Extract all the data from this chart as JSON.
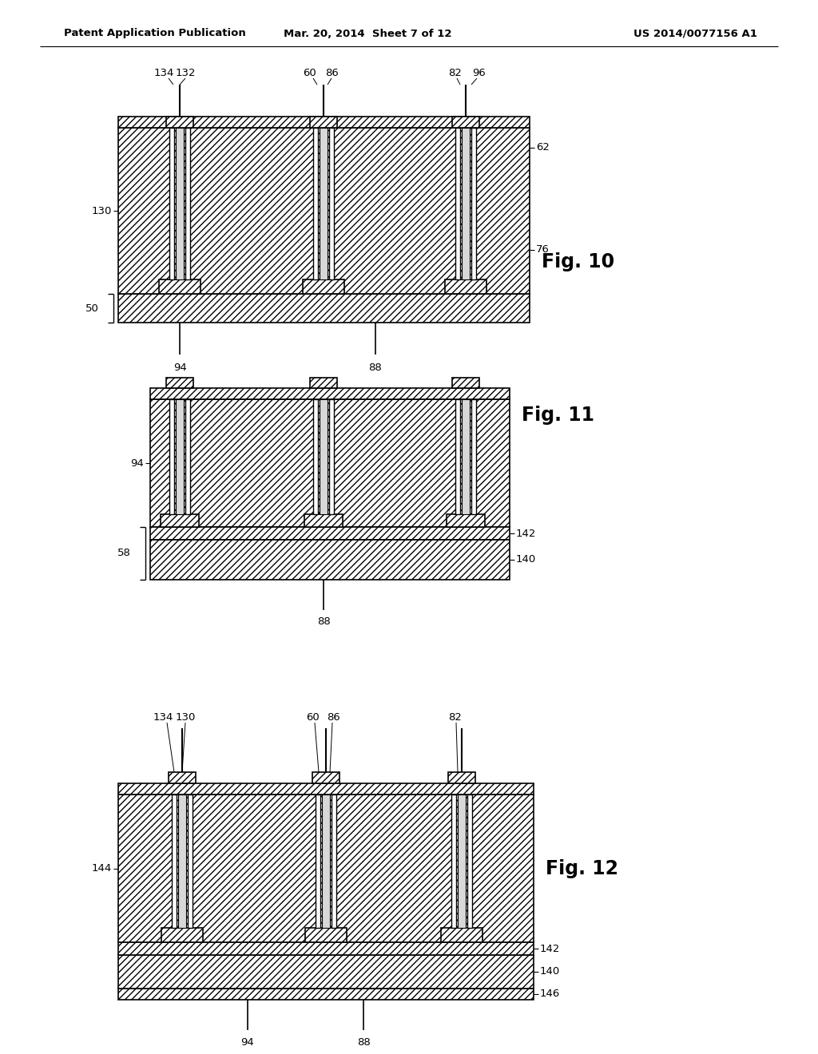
{
  "header_left": "Patent Application Publication",
  "header_mid": "Mar. 20, 2014  Sheet 7 of 12",
  "header_right": "US 2014/0077156 A1",
  "bg_color": "#ffffff",
  "line_color": "#000000",
  "fig10_label": "Fig. 10",
  "fig11_label": "Fig. 11",
  "fig12_label": "Fig. 12"
}
